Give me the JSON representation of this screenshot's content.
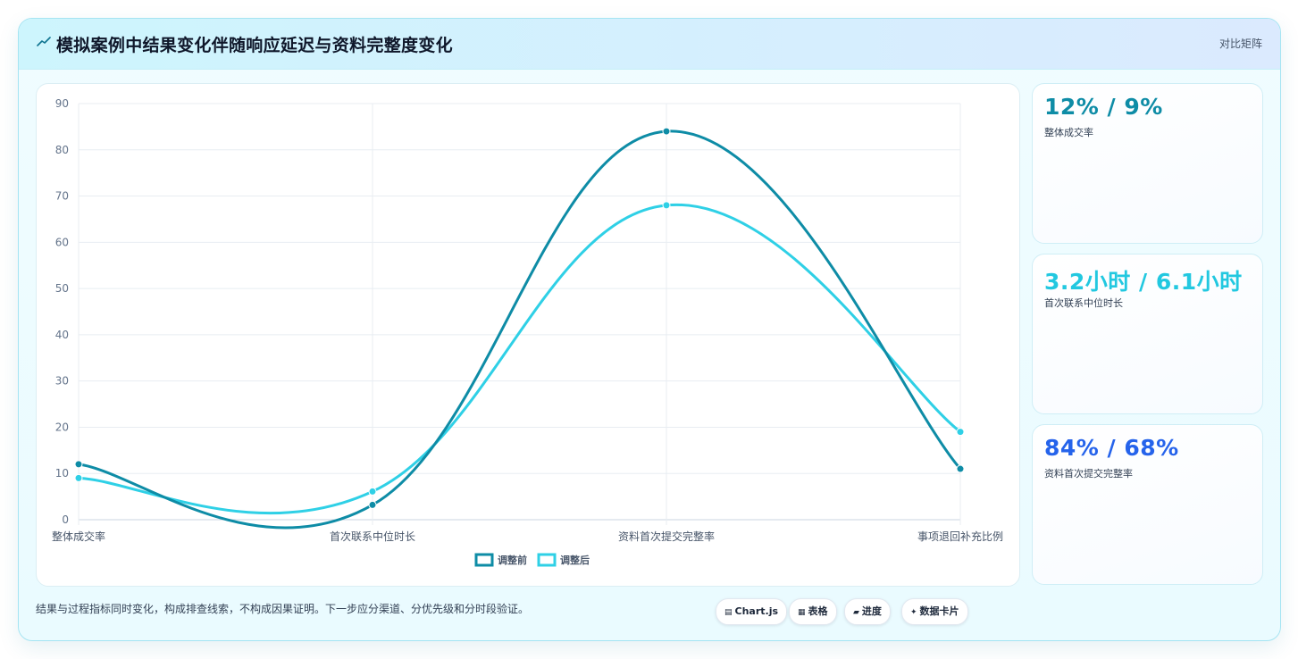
{
  "header": {
    "title": "模拟案例中结果变化伴随响应延迟与资料完整度变化",
    "link": "对比矩阵",
    "icon": "trend-icon",
    "accent": "#0e7490"
  },
  "chart_data": {
    "type": "line",
    "categories": [
      "整体成交率",
      "首次联系中位时长",
      "资料首次提交完整率",
      "事项退回补充比例"
    ],
    "series": [
      {
        "name": "调整前",
        "values": [
          12,
          3.2,
          84,
          11
        ],
        "color": "#0e8ca6"
      },
      {
        "name": "调整后",
        "values": [
          9,
          6.1,
          68,
          19
        ],
        "color": "#2fd0e6"
      }
    ],
    "ylim": [
      0,
      90
    ],
    "yticks": [
      0,
      10,
      20,
      30,
      40,
      50,
      60,
      70,
      80,
      90
    ],
    "grid": true,
    "legend": "bottom",
    "smooth": true
  },
  "kpis": [
    {
      "value": "12% / 9%",
      "label": "整体成交率",
      "color": "#0e8ca6"
    },
    {
      "value": "3.2小时 / 6.1小时",
      "label": "首次联系中位时长",
      "color": "#22c8e0"
    },
    {
      "value": "84% / 68%",
      "label": "资料首次提交完整率",
      "color": "#2563eb"
    }
  ],
  "footnote": "结果与过程指标同时变化，构成排查线索，不构成因果证明。下一步应分渠道、分优先级和分时段验证。",
  "chips": [
    {
      "icon": "▤",
      "label": "Chart.js"
    },
    {
      "icon": "▦",
      "label": "表格"
    },
    {
      "icon": "▰",
      "label": "进度"
    },
    {
      "icon": "✦",
      "label": "数据卡片"
    }
  ]
}
